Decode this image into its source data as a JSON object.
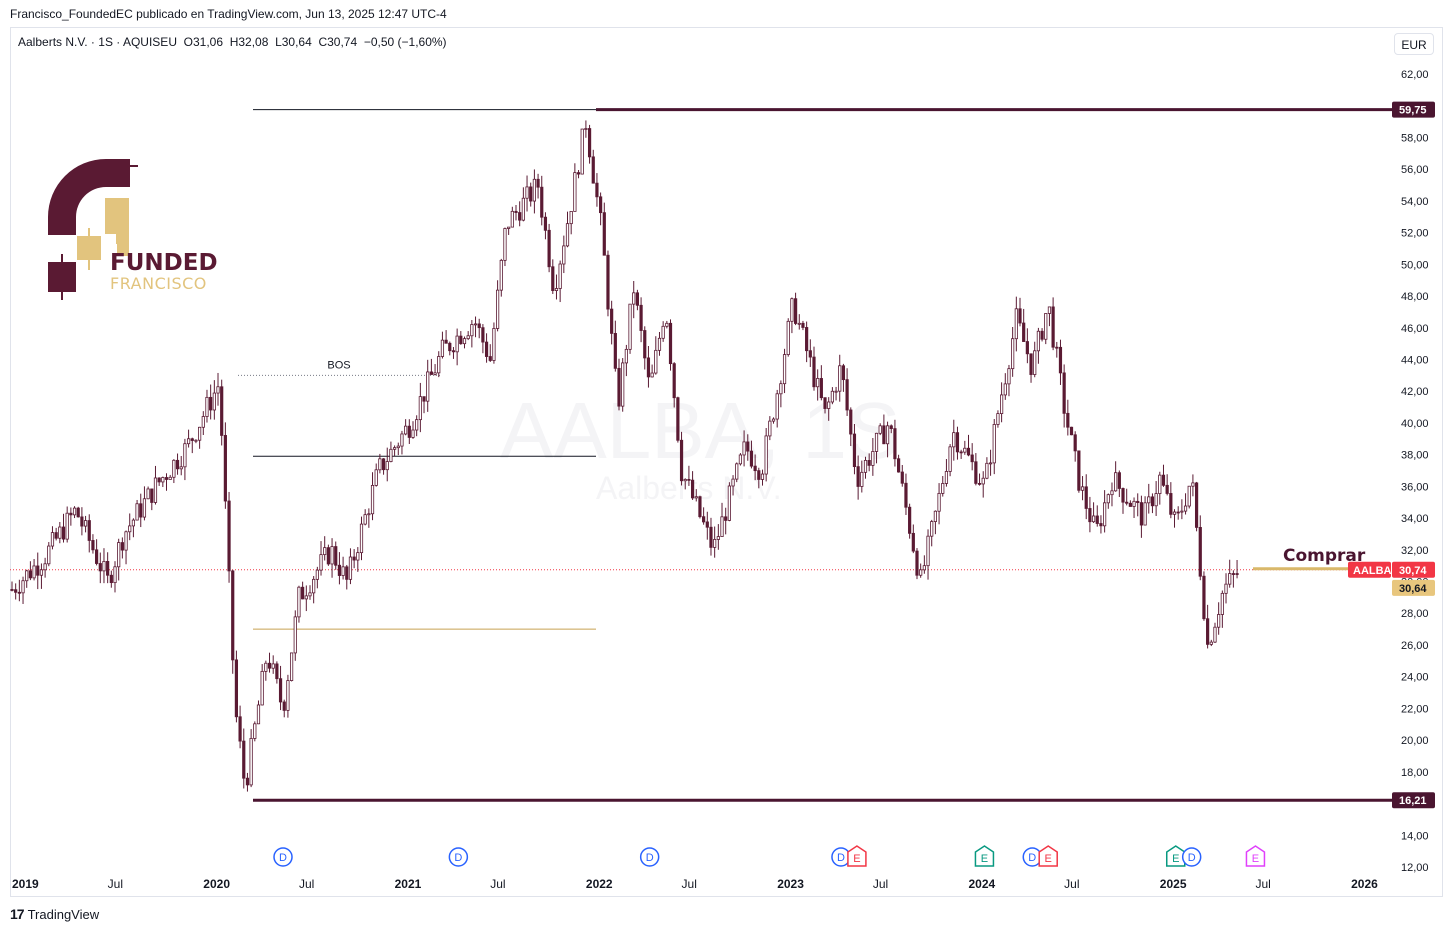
{
  "caption": "Francisco_FoundedEC publicado en TradingView.com, Jun 13, 2025 12:47 UTC-4",
  "legend": {
    "name": "Aalberts N.V.",
    "interval": "1S",
    "exchange": "AQUISEU",
    "open": "O31,06",
    "high": "H32,08",
    "low": "L30,64",
    "close": "C30,74",
    "change": "−0,50 (−1,60%)"
  },
  "currency": "EUR",
  "footer_brand": "TradingView",
  "logo": {
    "line1": "FUNDED",
    "line2": "FRANCISCO"
  },
  "watermark": {
    "symbol": "AALBA, 1S",
    "name": "Aalberts N.V."
  },
  "colors": {
    "candle": "#5a1a33",
    "accent": "#4a1530",
    "gold": "#e2c47e",
    "price_red": "#f23645",
    "dividend_blue": "#2962ff",
    "earnings_red": "#f23645",
    "earnings_green": "#089981",
    "earnings_purple": "#e040fb"
  },
  "chart_data": {
    "type": "candlestick",
    "symbol": "AALBA",
    "y_axis": {
      "min": 12,
      "max": 62,
      "ticks": [
        "62,00",
        "58,00",
        "56,00",
        "54,00",
        "52,00",
        "50,00",
        "48,00",
        "46,00",
        "44,00",
        "42,00",
        "40,00",
        "38,00",
        "36,00",
        "34,00",
        "32,00",
        "30,00",
        "28,00",
        "26,00",
        "24,00",
        "22,00",
        "20,00",
        "18,00",
        "14,00",
        "12,00"
      ]
    },
    "x_axis": {
      "ticks": [
        "2019",
        "Jul",
        "2020",
        "Jul",
        "2021",
        "Jul",
        "2022",
        "Jul",
        "2023",
        "Jul",
        "2024",
        "Jul",
        "2025",
        "Jul",
        "2026"
      ]
    },
    "weekly_close_path": [
      [
        "2019-01",
        29.5
      ],
      [
        "2019-03",
        31.5
      ],
      [
        "2019-05",
        34.5
      ],
      [
        "2019-07",
        30.0
      ],
      [
        "2019-08",
        33.0
      ],
      [
        "2019-10",
        36.0
      ],
      [
        "2019-12",
        38.5
      ],
      [
        "2020-02",
        42.5
      ],
      [
        "2020-03",
        22.0
      ],
      [
        "2020-03-20",
        17.0
      ],
      [
        "2020-05",
        25.5
      ],
      [
        "2020-06",
        22.0
      ],
      [
        "2020-07",
        29.0
      ],
      [
        "2020-09",
        32.0
      ],
      [
        "2020-10",
        30.0
      ],
      [
        "2020-12",
        37.0
      ],
      [
        "2021-02",
        40.0
      ],
      [
        "2021-04",
        44.5
      ],
      [
        "2021-06",
        46.5
      ],
      [
        "2021-07",
        44.0
      ],
      [
        "2021-08",
        52.5
      ],
      [
        "2021-10",
        55.0
      ],
      [
        "2021-11",
        48.5
      ],
      [
        "2021-12",
        53.5
      ],
      [
        "2022-01",
        59.0
      ],
      [
        "2022-02",
        52.0
      ],
      [
        "2022-03",
        41.0
      ],
      [
        "2022-04",
        48.5
      ],
      [
        "2022-05",
        42.0
      ],
      [
        "2022-06",
        47.5
      ],
      [
        "2022-07",
        37.0
      ],
      [
        "2022-09",
        32.0
      ],
      [
        "2022-11",
        38.5
      ],
      [
        "2022-12",
        37.0
      ],
      [
        "2023-01",
        42.0
      ],
      [
        "2023-02",
        47.5
      ],
      [
        "2023-04",
        40.5
      ],
      [
        "2023-05",
        43.5
      ],
      [
        "2023-06",
        36.5
      ],
      [
        "2023-08",
        40.0
      ],
      [
        "2023-10",
        30.0
      ],
      [
        "2023-11",
        34.5
      ],
      [
        "2023-12",
        39.5
      ],
      [
        "2024-02",
        36.0
      ],
      [
        "2024-03",
        41.5
      ],
      [
        "2024-04",
        46.5
      ],
      [
        "2024-05",
        43.5
      ],
      [
        "2024-06",
        47.5
      ],
      [
        "2024-07",
        41.0
      ],
      [
        "2024-08",
        36.0
      ],
      [
        "2024-09",
        33.0
      ],
      [
        "2024-10",
        36.5
      ],
      [
        "2024-12",
        34.0
      ],
      [
        "2025-01",
        36.5
      ],
      [
        "2025-02",
        33.5
      ],
      [
        "2025-03",
        36.5
      ],
      [
        "2025-04",
        26.0
      ],
      [
        "2025-05",
        29.5
      ],
      [
        "2025-06",
        30.74
      ]
    ],
    "last_price": "30,74",
    "last_low": "30,64",
    "levels": [
      {
        "value": 59.75,
        "label": "59,75"
      },
      {
        "value": 16.21,
        "label": "16,21"
      }
    ],
    "annotations": {
      "bos": "BOS",
      "buy": "Comprar"
    },
    "events": [
      {
        "date": "2020-06",
        "type": "D"
      },
      {
        "date": "2021-05",
        "type": "D"
      },
      {
        "date": "2022-05",
        "type": "D"
      },
      {
        "date": "2023-05",
        "type": "D"
      },
      {
        "date": "2023-06",
        "type": "E"
      },
      {
        "date": "2024-02",
        "type": "E"
      },
      {
        "date": "2024-05",
        "type": "D"
      },
      {
        "date": "2024-06",
        "type": "E"
      },
      {
        "date": "2025-02",
        "type": "E"
      },
      {
        "date": "2025-03",
        "type": "D"
      },
      {
        "date": "2025-07",
        "type": "E"
      }
    ]
  }
}
